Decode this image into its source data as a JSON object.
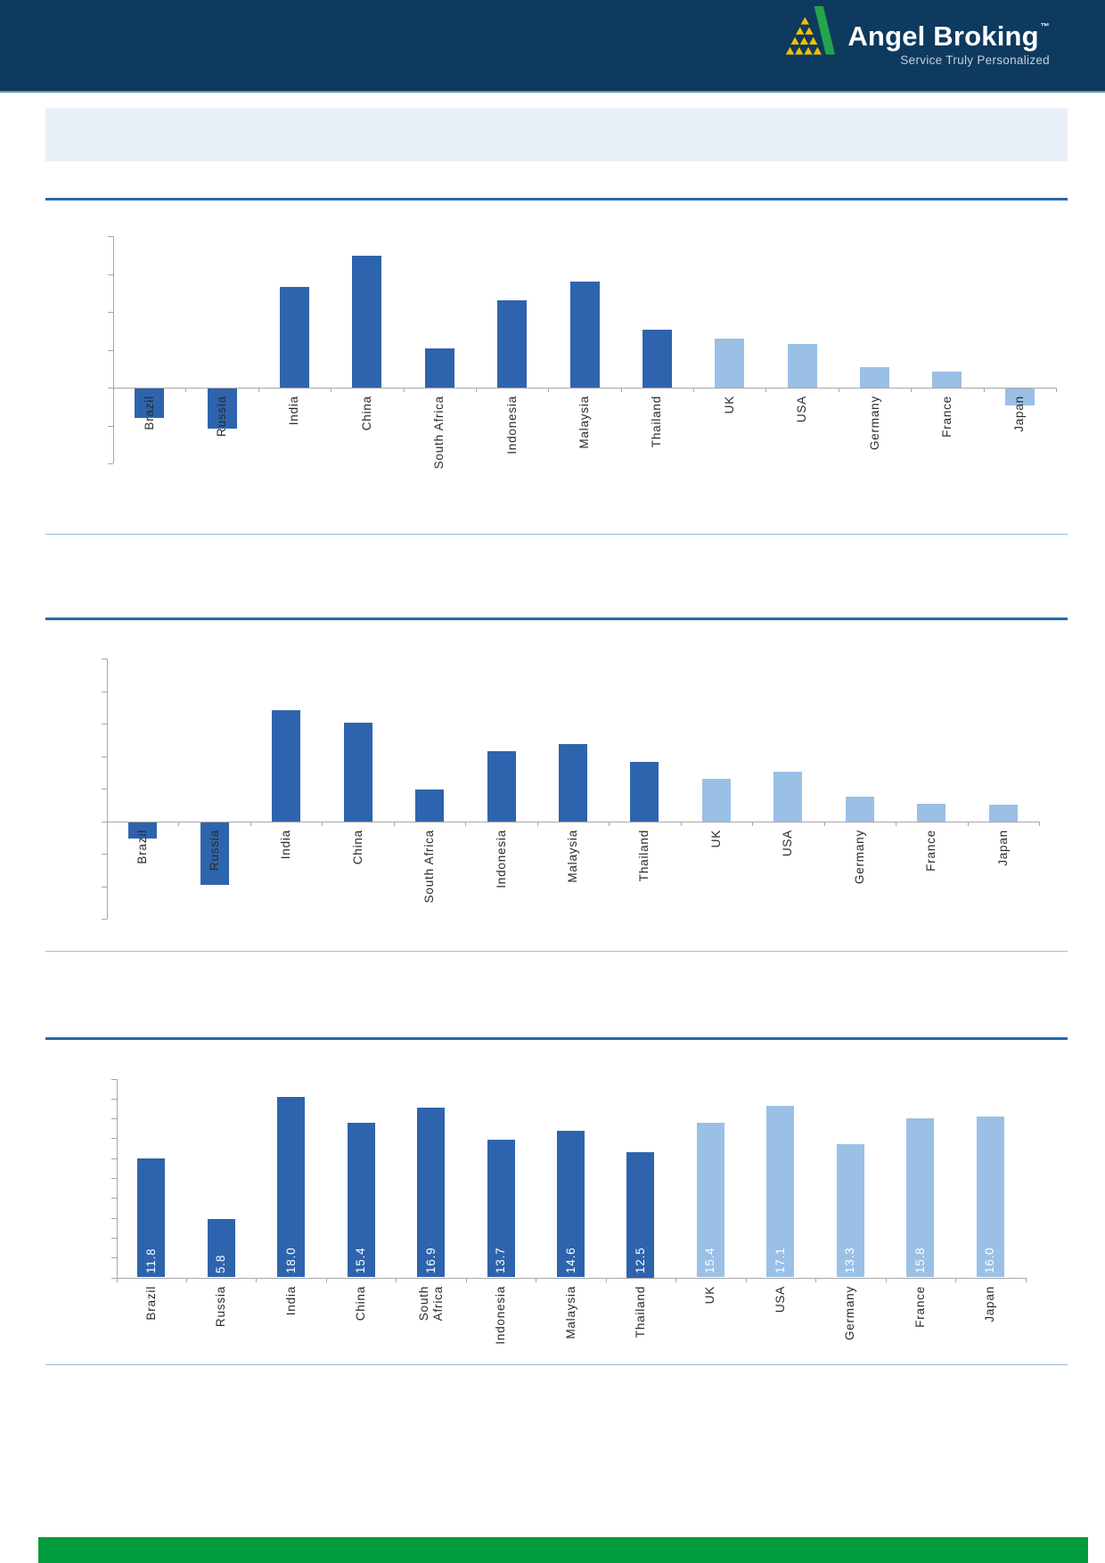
{
  "header": {
    "bg_color": "#0D3A5E",
    "logo": {
      "brand": "Angel Broking",
      "trademark": "™",
      "tagline": "Service Truly Personalized",
      "pyramid_color": "#F7BE00",
      "swoosh_color": "#23A44A"
    }
  },
  "banner": {
    "bg_color": "#EAF0F8",
    "text": ""
  },
  "colors": {
    "rule_heavy": "#2569AE",
    "rule_light": "#9DBBD8",
    "axis": "#A6A6A6",
    "label_text": "#2B2B2B",
    "bar_dark": "#2E64AD",
    "bar_light": "#9AC0E6",
    "footer_bar": "#009B3C",
    "value_label_text": "#FFFFFF"
  },
  "chart_data": [
    {
      "type": "bar",
      "title": "",
      "categories": [
        "Brazil",
        "Russia",
        "India",
        "China",
        "South Africa",
        "Indonesia",
        "Malaysia",
        "Thailand",
        "UK",
        "USA",
        "Germany",
        "France",
        "Japan"
      ],
      "values": [
        -0.77,
        -1.06,
        2.65,
        3.49,
        1.03,
        2.31,
        2.81,
        1.52,
        1.29,
        1.15,
        0.55,
        0.42,
        -0.45
      ],
      "ylim": [
        -2,
        4
      ],
      "tick_step": 1,
      "axis_tick_labels_visible": false,
      "grid": false,
      "legend": false,
      "data_labels_shown": false,
      "dark_series_count": 8
    },
    {
      "type": "bar",
      "title": "",
      "categories": [
        "Brazil",
        "Russia",
        "India",
        "China",
        "South Africa",
        "Indonesia",
        "Malaysia",
        "Thailand",
        "UK",
        "USA",
        "Germany",
        "France",
        "Japan"
      ],
      "values": [
        -0.5,
        -1.92,
        3.41,
        3.03,
        0.98,
        2.16,
        2.38,
        1.83,
        1.31,
        1.53,
        0.76,
        0.55,
        0.52
      ],
      "ylim": [
        -3,
        5
      ],
      "tick_step": 1,
      "axis_tick_labels_visible": false,
      "grid": false,
      "legend": false,
      "data_labels_shown": false,
      "dark_series_count": 8
    },
    {
      "type": "bar",
      "title": "",
      "categories": [
        "Brazil",
        "Russia",
        "India",
        "China",
        "South Africa",
        "Indonesia",
        "Malaysia",
        "Thailand",
        "UK",
        "USA",
        "Germany",
        "France",
        "Japan"
      ],
      "categories_display": [
        "Brazil",
        "Russia",
        "India",
        "China",
        "South\nAfrica",
        "Indonesia",
        "Malaysia",
        "Thailand",
        "UK",
        "USA",
        "Germany",
        "France",
        "Japan"
      ],
      "values": [
        11.8,
        5.8,
        18.0,
        15.4,
        16.9,
        13.7,
        14.6,
        12.5,
        15.4,
        17.1,
        13.3,
        15.8,
        16.0
      ],
      "data_labels": [
        "11.8",
        "5.8",
        "18.0",
        "15.4",
        "16.9",
        "13.7",
        "14.6",
        "12.5",
        "15.4",
        "17.1",
        "13.3",
        "15.8",
        "16.0"
      ],
      "ylim": [
        0,
        20
      ],
      "tick_step": 2,
      "axis_tick_labels_visible": false,
      "grid": false,
      "legend": false,
      "data_labels_shown": true,
      "dark_series_count": 8
    }
  ]
}
